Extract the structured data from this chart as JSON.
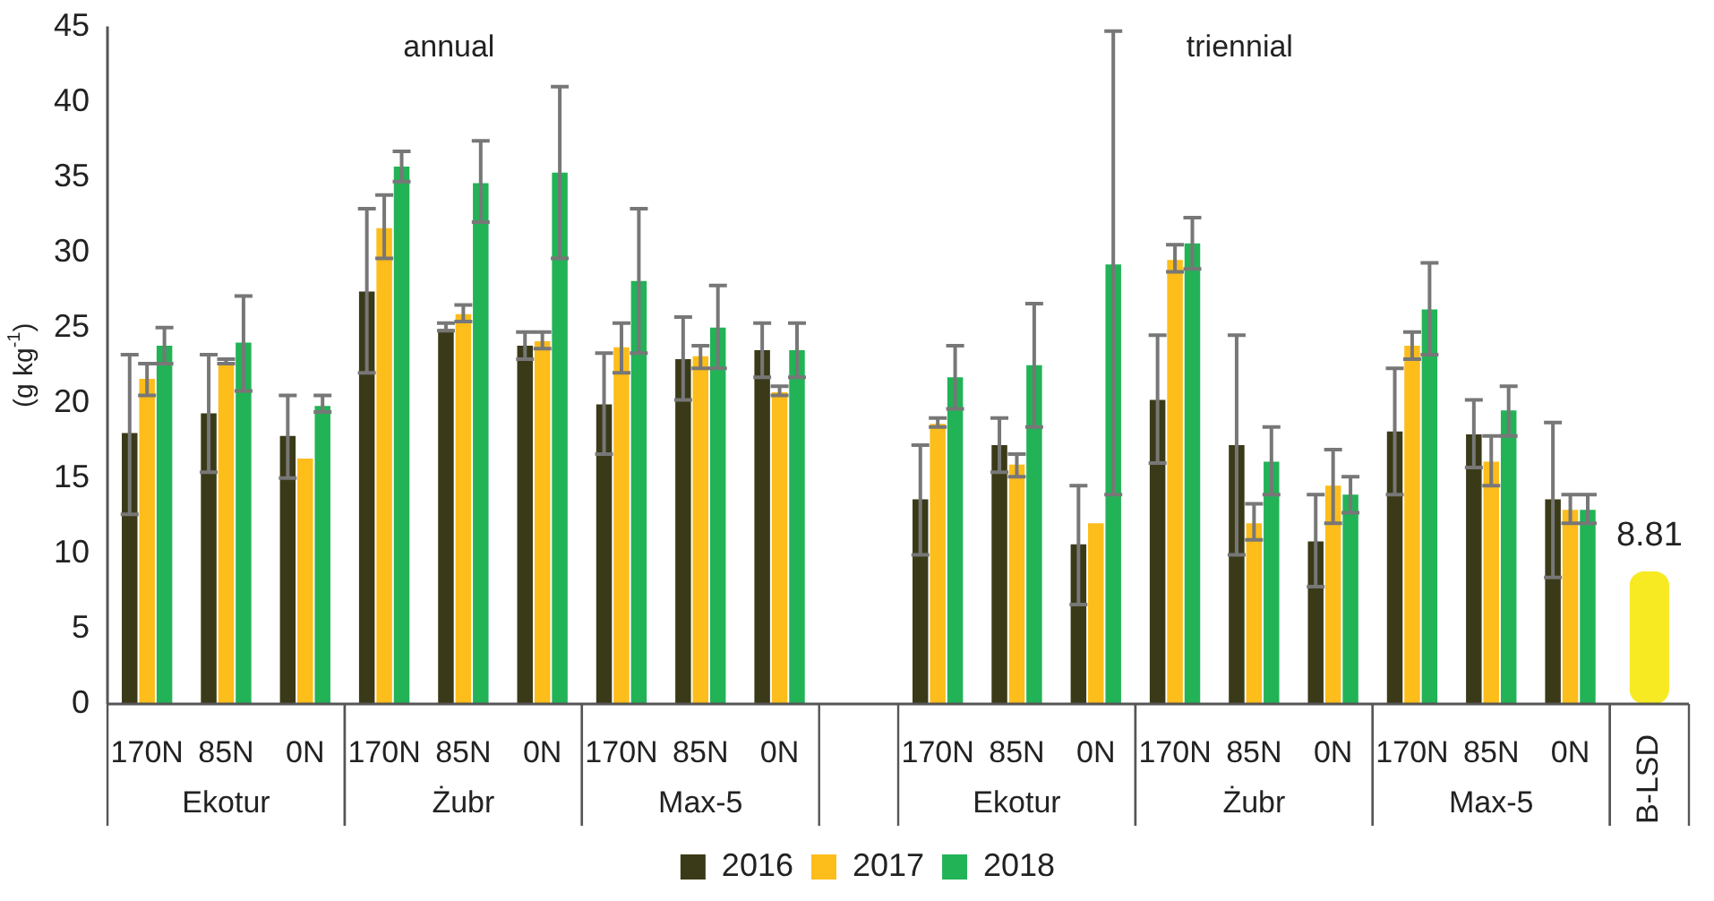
{
  "chart_data": {
    "type": "bar",
    "ylabel": "(g kg$^{-1}$)",
    "categories": [
      "170N",
      "85N",
      "0N",
      "170N",
      "85N",
      "0N",
      "170N",
      "85N",
      "0N",
      null,
      "170N",
      "85N",
      "0N",
      "170N",
      "85N",
      "0N",
      "170N",
      "85N",
      "0N",
      "B-LSD"
    ],
    "series": [
      {
        "name": "2016",
        "color": "#3b3a18",
        "values": [
          18.0,
          19.3,
          17.8,
          27.4,
          24.9,
          23.8,
          19.9,
          22.9,
          23.5,
          null,
          13.6,
          17.2,
          10.6,
          20.2,
          17.2,
          10.8,
          18.1,
          17.9,
          13.6,
          null
        ],
        "errors": [
          [
            12.6,
            23.2
          ],
          [
            15.4,
            23.2
          ],
          [
            15.0,
            20.5
          ],
          [
            22.0,
            32.9
          ],
          [
            24.8,
            25.3
          ],
          [
            22.9,
            24.7
          ],
          [
            16.6,
            23.3
          ],
          [
            20.2,
            25.7
          ],
          [
            21.7,
            25.3
          ],
          null,
          [
            9.9,
            17.2
          ],
          [
            15.4,
            19.0
          ],
          [
            6.6,
            14.5
          ],
          [
            16.0,
            24.5
          ],
          [
            9.9,
            24.5
          ],
          [
            7.8,
            13.9
          ],
          [
            13.9,
            22.3
          ],
          [
            15.7,
            20.2
          ],
          [
            8.4,
            18.7
          ],
          null
        ]
      },
      {
        "name": "2017",
        "color": "#fdbd1a",
        "values": [
          21.6,
          22.7,
          16.3,
          31.6,
          25.9,
          24.1,
          23.7,
          23.1,
          20.7,
          null,
          18.6,
          15.9,
          12.0,
          29.5,
          12.0,
          14.5,
          23.8,
          16.1,
          12.9,
          null
        ],
        "errors": [
          [
            20.5,
            22.6
          ],
          [
            22.6,
            22.9
          ],
          null,
          [
            29.6,
            33.8
          ],
          [
            25.4,
            26.5
          ],
          [
            23.6,
            24.7
          ],
          [
            22.0,
            25.3
          ],
          [
            22.3,
            23.8
          ],
          [
            20.5,
            21.1
          ],
          null,
          [
            18.4,
            19.0
          ],
          [
            15.1,
            16.6
          ],
          null,
          [
            28.7,
            30.5
          ],
          [
            10.9,
            13.3
          ],
          [
            12.0,
            16.9
          ],
          [
            22.9,
            24.7
          ],
          [
            14.5,
            17.8
          ],
          [
            12.0,
            13.9
          ],
          null
        ]
      },
      {
        "name": "2018",
        "color": "#22b357",
        "values": [
          23.8,
          24.0,
          19.8,
          35.7,
          34.6,
          35.3,
          28.1,
          25.0,
          23.5,
          null,
          21.7,
          22.5,
          29.2,
          30.6,
          16.1,
          13.9,
          26.2,
          19.5,
          12.9,
          null
        ],
        "errors": [
          [
            22.6,
            25.0
          ],
          [
            20.8,
            27.1
          ],
          [
            19.4,
            20.5
          ],
          [
            34.7,
            36.7
          ],
          [
            32.0,
            37.4
          ],
          [
            29.6,
            41.0
          ],
          [
            23.3,
            32.9
          ],
          [
            22.3,
            27.8
          ],
          [
            21.7,
            25.3
          ],
          null,
          [
            19.6,
            23.8
          ],
          [
            18.4,
            26.6
          ],
          [
            13.9,
            44.7
          ],
          [
            28.9,
            32.3
          ],
          [
            13.9,
            18.4
          ],
          [
            12.7,
            15.1
          ],
          [
            23.2,
            29.3
          ],
          [
            17.8,
            21.1
          ],
          [
            12.0,
            13.9
          ],
          null
        ]
      },
      {
        "color": "#f7ea22",
        "values": [
          null,
          null,
          null,
          null,
          null,
          null,
          null,
          null,
          null,
          null,
          null,
          null,
          null,
          null,
          null,
          null,
          null,
          null,
          null,
          8.81
        ],
        "value_labels": [
          null,
          null,
          null,
          null,
          null,
          null,
          null,
          null,
          null,
          null,
          null,
          null,
          null,
          null,
          null,
          null,
          null,
          null,
          null,
          "8.81"
        ]
      }
    ],
    "ylim": [
      0,
      45
    ],
    "yticks": [
      0,
      5,
      10,
      15,
      20,
      25,
      30,
      35,
      40,
      45
    ],
    "grid": false,
    "legend": "bottom",
    "annotations": [
      "annual",
      "triennial",
      "Ekotur",
      "Żubr",
      "Max-5",
      "Ekotur",
      "Żubr",
      "Max-5"
    ]
  }
}
